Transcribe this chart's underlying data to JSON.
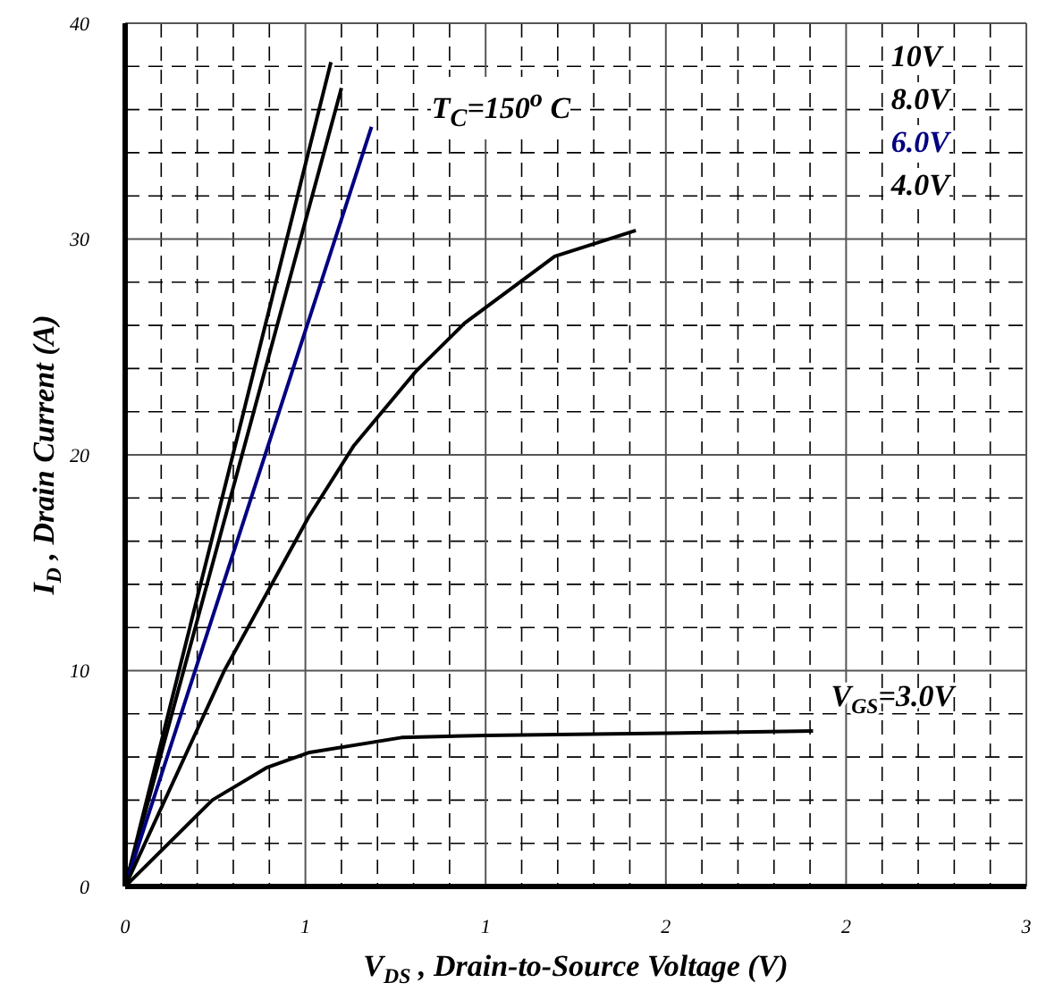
{
  "chart_data": {
    "type": "line",
    "xlabel": "V$_{DS}$ , Drain-to-Source Voltage (V)",
    "ylabel": "I$_{D}$ , Drain Current (A)",
    "annotations": [
      "T$_{C}$=150$^{o}$ C"
    ],
    "xlim": [
      0,
      3
    ],
    "xticks": [
      0,
      {
        "value": 0.6,
        "label": "1"
      },
      {
        "value": 1.2,
        "label": "1"
      },
      {
        "value": 1.8,
        "label": "2"
      },
      {
        "value": 2.4,
        "label": "2"
      },
      3
    ],
    "ylim": [
      0,
      40
    ],
    "yticks": [
      0,
      10,
      20,
      30,
      40
    ],
    "grid": true,
    "line_style": "solid",
    "marker": "none",
    "series": [
      {
        "name": "10V",
        "color": "#000000",
        "x": [
          0,
          0.685
        ],
        "values": [
          0,
          38.2
        ]
      },
      {
        "name": "8.0V",
        "color": "#000000",
        "x": [
          0,
          0.72
        ],
        "values": [
          0,
          37.0
        ]
      },
      {
        "name": "6.0V",
        "color": "#000080",
        "x": [
          0,
          0.82
        ],
        "values": [
          0,
          35.2
        ]
      },
      {
        "name": "4.0V",
        "color": "#000000",
        "x": [
          0,
          0.33,
          0.61,
          0.76,
          0.97,
          1.13,
          1.43,
          1.7
        ],
        "values": [
          0,
          10,
          17.1,
          20.4,
          23.9,
          26.1,
          29.2,
          30.4
        ]
      },
      {
        "name": "V$_{GS}$=3.0V",
        "color": "#000000",
        "x": [
          0,
          0.29,
          0.47,
          0.61,
          0.92,
          1.2,
          1.8,
          2.29
        ],
        "values": [
          0,
          4.0,
          5.5,
          6.2,
          6.9,
          7.0,
          7.1,
          7.2
        ]
      }
    ]
  }
}
